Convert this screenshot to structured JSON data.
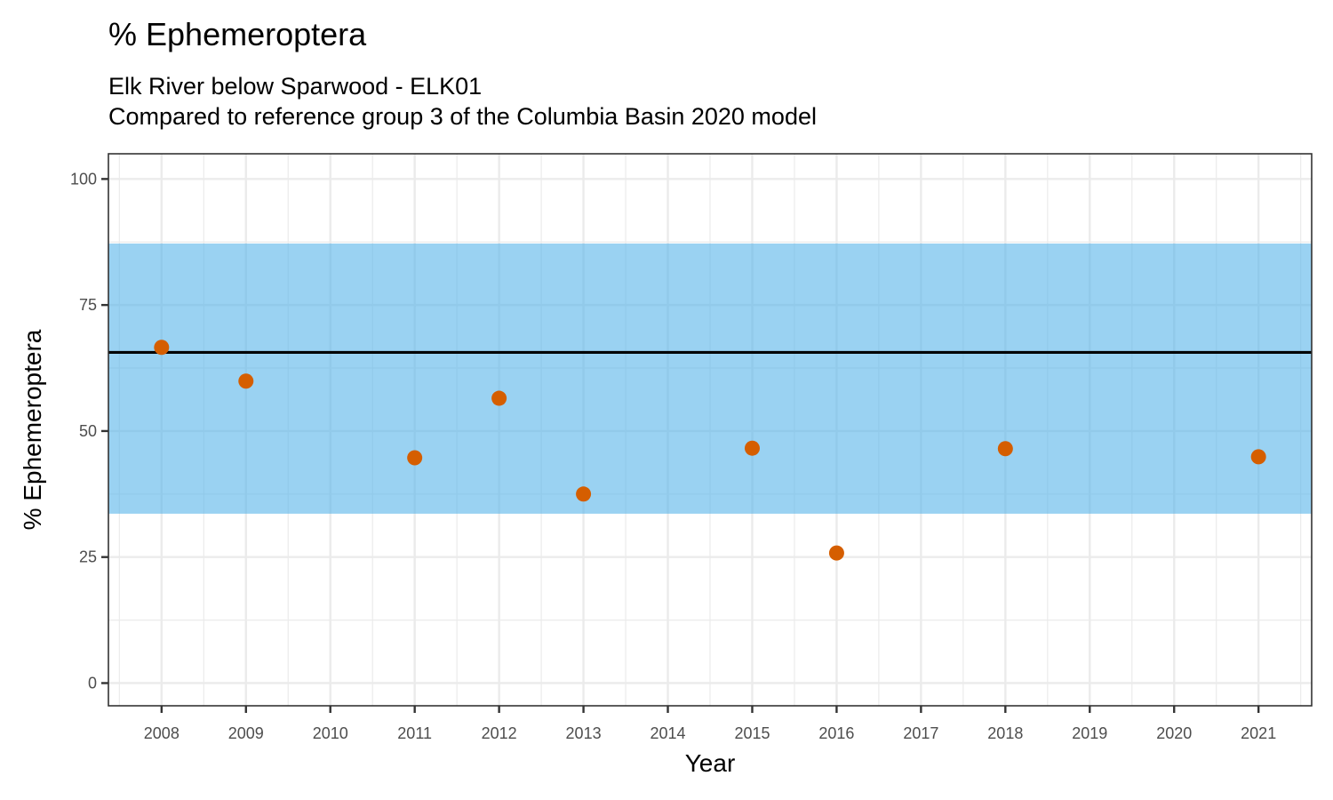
{
  "chart_data": {
    "type": "scatter",
    "title": "% Ephemeroptera",
    "subtitle_lines": [
      "Elk River below Sparwood - ELK01",
      "Compared to reference group 3 of the Columbia Basin 2020 model"
    ],
    "xlabel": "Year",
    "ylabel": "% Ephemeroptera",
    "xlim": [
      2007.37,
      2021.63
    ],
    "ylim": [
      -4.5,
      105
    ],
    "x_ticks": [
      2008,
      2009,
      2010,
      2011,
      2012,
      2013,
      2014,
      2015,
      2016,
      2017,
      2018,
      2019,
      2020,
      2021
    ],
    "y_ticks": [
      0,
      25,
      50,
      75,
      100
    ],
    "grid": true,
    "series": [
      {
        "x": [
          2008,
          2009,
          2011,
          2012,
          2013,
          2015,
          2016,
          2018,
          2021
        ],
        "values": [
          66.6,
          59.9,
          44.7,
          56.5,
          37.5,
          46.6,
          25.8,
          46.5,
          44.9
        ],
        "color": "#d55e00"
      }
    ],
    "reference_band": {
      "lower": 33.6,
      "upper": 87.2,
      "color": "#56b4e9"
    },
    "reference_line": {
      "value": 65.6,
      "color": "#000000"
    }
  }
}
